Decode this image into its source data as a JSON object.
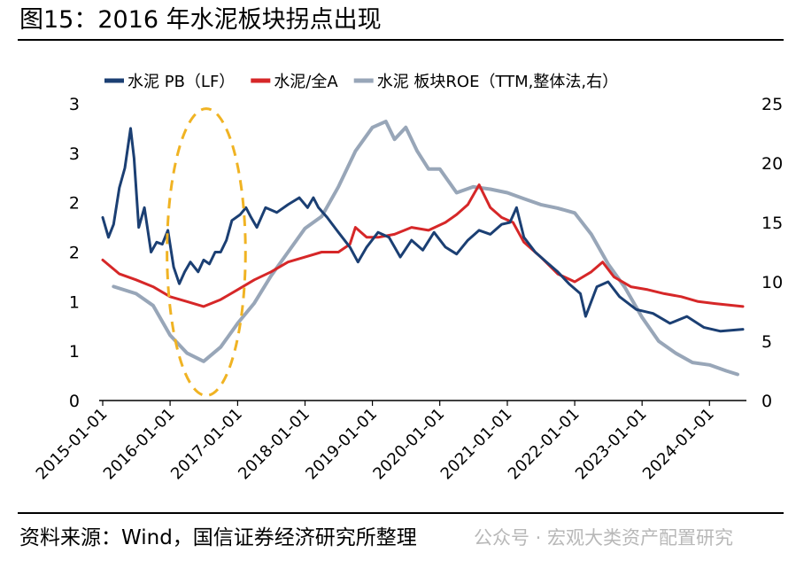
{
  "figure": {
    "label": "图15：",
    "title": "2016 年水泥板块拐点出现",
    "source": "资料来源：Wind，国信证券经济研究所整理",
    "watermark": "公众号 · 宏观大类资产配置研究"
  },
  "chart_data": {
    "type": "line",
    "title": "",
    "legend_position": "top",
    "grid": false,
    "x_ticks": [
      "2015-01-01",
      "2016-01-01",
      "2017-01-01",
      "2018-01-01",
      "2019-01-01",
      "2020-01-01",
      "2021-01-01",
      "2022-01-01",
      "2023-01-01",
      "2024-01-01"
    ],
    "x_range": [
      "2015-01-01",
      "2024-06-30"
    ],
    "y_left": {
      "range": [
        0,
        3
      ],
      "tick_values": [
        0,
        0.5,
        1,
        1.5,
        2,
        2.5,
        3
      ],
      "tick_labels": [
        "0",
        "1",
        "1",
        "2",
        "2",
        "3",
        "3"
      ]
    },
    "y_right": {
      "range": [
        0,
        25
      ],
      "tick_values": [
        0,
        5,
        10,
        15,
        20,
        25
      ],
      "tick_labels": [
        "0",
        "5",
        "10",
        "15",
        "20",
        "25"
      ]
    },
    "series": [
      {
        "name": "水泥 PB（LF）",
        "axis": "left",
        "color": "#1b3f73",
        "points": [
          [
            "2015-01-01",
            1.85
          ],
          [
            "2015-02-01",
            1.65
          ],
          [
            "2015-03-01",
            1.78
          ],
          [
            "2015-04-01",
            2.15
          ],
          [
            "2015-05-01",
            2.35
          ],
          [
            "2015-06-01",
            2.75
          ],
          [
            "2015-06-20",
            2.45
          ],
          [
            "2015-07-15",
            1.75
          ],
          [
            "2015-08-15",
            1.95
          ],
          [
            "2015-09-20",
            1.5
          ],
          [
            "2015-10-20",
            1.6
          ],
          [
            "2015-11-20",
            1.58
          ],
          [
            "2015-12-20",
            1.72
          ],
          [
            "2016-01-20",
            1.35
          ],
          [
            "2016-02-20",
            1.18
          ],
          [
            "2016-03-20",
            1.3
          ],
          [
            "2016-04-20",
            1.4
          ],
          [
            "2016-06-01",
            1.3
          ],
          [
            "2016-07-01",
            1.42
          ],
          [
            "2016-08-01",
            1.38
          ],
          [
            "2016-09-01",
            1.5
          ],
          [
            "2016-10-01",
            1.5
          ],
          [
            "2016-11-01",
            1.62
          ],
          [
            "2016-12-01",
            1.82
          ],
          [
            "2017-01-15",
            1.88
          ],
          [
            "2017-02-15",
            1.95
          ],
          [
            "2017-03-15",
            1.85
          ],
          [
            "2017-04-15",
            1.75
          ],
          [
            "2017-06-01",
            1.95
          ],
          [
            "2017-08-01",
            1.9
          ],
          [
            "2017-10-01",
            1.98
          ],
          [
            "2017-12-01",
            2.05
          ],
          [
            "2018-01-15",
            1.95
          ],
          [
            "2018-02-15",
            2.05
          ],
          [
            "2018-03-15",
            1.95
          ],
          [
            "2018-05-01",
            1.85
          ],
          [
            "2018-07-01",
            1.7
          ],
          [
            "2018-09-01",
            1.55
          ],
          [
            "2018-10-15",
            1.4
          ],
          [
            "2018-12-01",
            1.55
          ],
          [
            "2019-02-01",
            1.7
          ],
          [
            "2019-04-01",
            1.65
          ],
          [
            "2019-06-01",
            1.45
          ],
          [
            "2019-08-01",
            1.62
          ],
          [
            "2019-10-01",
            1.52
          ],
          [
            "2019-12-01",
            1.7
          ],
          [
            "2020-02-01",
            1.55
          ],
          [
            "2020-04-01",
            1.48
          ],
          [
            "2020-06-01",
            1.62
          ],
          [
            "2020-08-01",
            1.72
          ],
          [
            "2020-10-01",
            1.68
          ],
          [
            "2020-12-01",
            1.78
          ],
          [
            "2021-01-15",
            1.8
          ],
          [
            "2021-02-20",
            1.95
          ],
          [
            "2021-04-01",
            1.65
          ],
          [
            "2021-06-01",
            1.5
          ],
          [
            "2021-08-01",
            1.4
          ],
          [
            "2021-10-01",
            1.3
          ],
          [
            "2021-12-01",
            1.18
          ],
          [
            "2022-02-01",
            1.08
          ],
          [
            "2022-03-01",
            0.85
          ],
          [
            "2022-05-01",
            1.15
          ],
          [
            "2022-07-01",
            1.2
          ],
          [
            "2022-09-01",
            1.05
          ],
          [
            "2022-12-01",
            0.92
          ],
          [
            "2023-03-01",
            0.88
          ],
          [
            "2023-06-01",
            0.78
          ],
          [
            "2023-09-01",
            0.85
          ],
          [
            "2023-12-01",
            0.74
          ],
          [
            "2024-03-01",
            0.7
          ],
          [
            "2024-06-30",
            0.72
          ]
        ]
      },
      {
        "name": "水泥/全A",
        "axis": "left",
        "color": "#d62728",
        "points": [
          [
            "2015-01-01",
            1.42
          ],
          [
            "2015-04-01",
            1.28
          ],
          [
            "2015-07-01",
            1.22
          ],
          [
            "2015-10-01",
            1.15
          ],
          [
            "2016-01-01",
            1.05
          ],
          [
            "2016-04-01",
            1.0
          ],
          [
            "2016-07-01",
            0.95
          ],
          [
            "2016-10-01",
            1.02
          ],
          [
            "2017-01-01",
            1.12
          ],
          [
            "2017-04-01",
            1.22
          ],
          [
            "2017-07-01",
            1.3
          ],
          [
            "2017-10-01",
            1.4
          ],
          [
            "2018-01-01",
            1.45
          ],
          [
            "2018-04-01",
            1.5
          ],
          [
            "2018-07-01",
            1.5
          ],
          [
            "2018-09-01",
            1.58
          ],
          [
            "2018-10-01",
            1.75
          ],
          [
            "2018-12-01",
            1.65
          ],
          [
            "2019-02-01",
            1.65
          ],
          [
            "2019-05-01",
            1.68
          ],
          [
            "2019-08-01",
            1.75
          ],
          [
            "2019-11-01",
            1.72
          ],
          [
            "2020-02-01",
            1.8
          ],
          [
            "2020-04-01",
            1.88
          ],
          [
            "2020-06-01",
            1.98
          ],
          [
            "2020-08-01",
            2.18
          ],
          [
            "2020-10-01",
            1.95
          ],
          [
            "2020-12-01",
            1.85
          ],
          [
            "2021-02-01",
            1.8
          ],
          [
            "2021-04-01",
            1.6
          ],
          [
            "2021-07-01",
            1.45
          ],
          [
            "2021-10-01",
            1.28
          ],
          [
            "2022-01-01",
            1.2
          ],
          [
            "2022-04-01",
            1.3
          ],
          [
            "2022-06-01",
            1.4
          ],
          [
            "2022-08-01",
            1.25
          ],
          [
            "2022-11-01",
            1.15
          ],
          [
            "2023-02-01",
            1.12
          ],
          [
            "2023-05-01",
            1.08
          ],
          [
            "2023-08-01",
            1.05
          ],
          [
            "2023-11-01",
            1.0
          ],
          [
            "2024-02-01",
            0.98
          ],
          [
            "2024-06-30",
            0.95
          ]
        ]
      },
      {
        "name": "水泥 板块ROE（TTM,整体法,右）",
        "axis": "right",
        "color": "#98a6b8",
        "points": [
          [
            "2015-03-01",
            9.6
          ],
          [
            "2015-07-01",
            9.0
          ],
          [
            "2015-10-01",
            8.0
          ],
          [
            "2016-01-01",
            5.5
          ],
          [
            "2016-04-01",
            4.0
          ],
          [
            "2016-07-01",
            3.3
          ],
          [
            "2016-10-01",
            4.5
          ],
          [
            "2017-01-01",
            6.5
          ],
          [
            "2017-04-01",
            8.2
          ],
          [
            "2017-07-01",
            10.5
          ],
          [
            "2017-10-01",
            12.5
          ],
          [
            "2018-01-01",
            14.5
          ],
          [
            "2018-04-01",
            15.5
          ],
          [
            "2018-07-01",
            18.0
          ],
          [
            "2018-10-01",
            21.0
          ],
          [
            "2019-01-01",
            23.0
          ],
          [
            "2019-03-15",
            23.5
          ],
          [
            "2019-05-01",
            22.0
          ],
          [
            "2019-07-01",
            23.0
          ],
          [
            "2019-09-01",
            21.0
          ],
          [
            "2019-11-01",
            19.5
          ],
          [
            "2020-01-01",
            19.5
          ],
          [
            "2020-04-01",
            17.5
          ],
          [
            "2020-07-01",
            18.0
          ],
          [
            "2020-10-01",
            17.8
          ],
          [
            "2021-01-01",
            17.5
          ],
          [
            "2021-04-01",
            17.0
          ],
          [
            "2021-07-01",
            16.5
          ],
          [
            "2021-10-01",
            16.2
          ],
          [
            "2022-01-01",
            15.8
          ],
          [
            "2022-04-01",
            14.0
          ],
          [
            "2022-07-01",
            11.5
          ],
          [
            "2022-10-01",
            9.5
          ],
          [
            "2023-01-01",
            7.0
          ],
          [
            "2023-04-01",
            5.0
          ],
          [
            "2023-07-01",
            4.0
          ],
          [
            "2023-10-01",
            3.2
          ],
          [
            "2024-01-01",
            3.0
          ],
          [
            "2024-04-01",
            2.5
          ],
          [
            "2024-06-01",
            2.2
          ]
        ]
      }
    ],
    "annotations": [
      {
        "type": "ellipse",
        "color": "#f0b323",
        "x_center": "2016-07-15",
        "x_from": "2016-01-01",
        "x_to": "2017-03-01",
        "y_left_from": 0.05,
        "y_left_to": 2.95
      }
    ]
  }
}
